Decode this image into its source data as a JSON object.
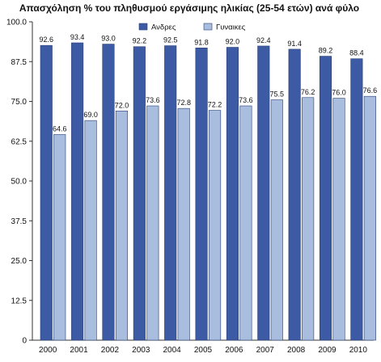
{
  "colors": {
    "men": "#3d5ba5",
    "women": "#a9bedf",
    "axis": "#333333",
    "background": "#ffffff"
  },
  "chart_data": {
    "type": "bar",
    "title": "Απασχόληση % του πληθυσμού εργάσιμης ηλικίας (25-54 ετών) ανά φύλο",
    "categories": [
      "2000",
      "2001",
      "2002",
      "2003",
      "2004",
      "2005",
      "2006",
      "2007",
      "2008",
      "2009",
      "2010"
    ],
    "series": [
      {
        "name": "Ανδρες",
        "color": "#3d5ba5",
        "values": [
          92.6,
          93.4,
          93.0,
          92.2,
          92.5,
          91.8,
          92.0,
          92.4,
          91.4,
          89.2,
          88.4
        ]
      },
      {
        "name": "Γυναικες",
        "color": "#a9bedf",
        "values": [
          64.6,
          69.0,
          72.0,
          73.6,
          72.8,
          72.2,
          73.6,
          75.5,
          76.2,
          76.0,
          76.6
        ]
      }
    ],
    "data_labels": [
      [
        "92.6",
        "93.4",
        "93.0",
        "92.2",
        "92.5",
        "91.8",
        "92.0",
        "92.4",
        "91.4",
        "89.2",
        "88.4"
      ],
      [
        "64.6",
        "69.0",
        "72.0",
        "73.6",
        "72.8",
        "72.2",
        "73.6",
        "75.5",
        "76.2",
        "76.0",
        "76.6"
      ]
    ],
    "ylim": [
      0,
      100
    ],
    "yticks": [
      0,
      12.5,
      25,
      37.5,
      50,
      62.5,
      75,
      87.5,
      100
    ],
    "ytick_labels": [
      "0",
      "12.5",
      "25.0",
      "37.5",
      "50.0",
      "62.5",
      "75.0",
      "87.5",
      "100.0"
    ],
    "xlabel": "",
    "ylabel": "",
    "grid": false,
    "legend": "top-center"
  }
}
